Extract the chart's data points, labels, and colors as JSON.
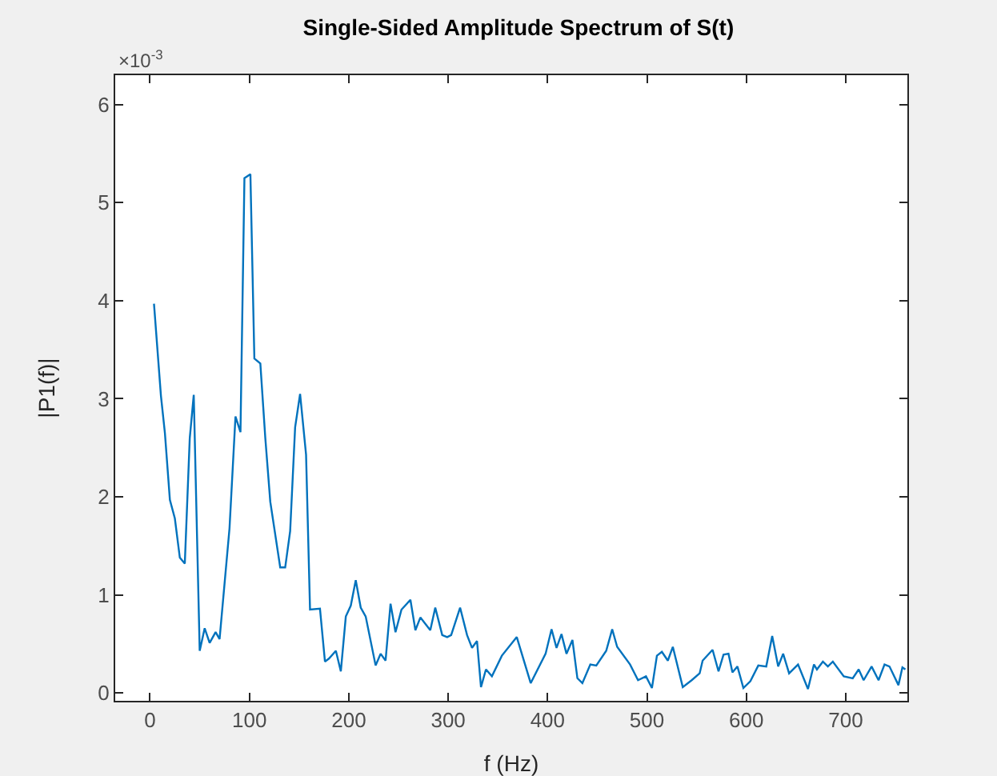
{
  "chart_data": {
    "type": "line",
    "title": "Single-Sided Amplitude Spectrum of S(t)",
    "xlabel": "f (Hz)",
    "ylabel": "|P1(f)|",
    "annotations": [
      "×10$^{-3}$"
    ],
    "x": [
      4,
      11,
      15,
      20,
      25,
      30,
      35,
      40,
      44,
      50,
      55,
      60,
      66,
      70,
      80,
      86,
      91,
      95,
      101,
      105,
      111,
      116,
      121,
      131,
      136,
      141,
      146,
      151,
      157,
      161,
      171,
      176,
      180,
      187,
      192,
      197,
      202,
      207,
      212,
      217,
      227,
      232,
      237,
      242,
      247,
      253,
      262,
      267,
      272,
      282,
      287,
      294,
      299,
      303,
      312,
      319,
      324,
      329,
      333,
      338,
      344,
      354,
      369,
      383,
      398,
      404,
      409,
      414,
      419,
      425,
      430,
      435,
      443,
      449,
      459,
      465,
      470,
      483,
      491,
      499,
      505,
      510,
      515,
      521,
      526,
      536,
      545,
      553,
      556,
      566,
      572,
      577,
      582,
      586,
      591,
      597,
      604,
      612,
      620,
      626,
      632,
      637,
      643,
      652,
      662,
      668,
      671,
      677,
      682,
      687,
      698,
      707,
      713,
      718,
      726,
      733,
      739,
      744,
      753,
      757,
      760
    ],
    "series": [
      {
        "color": "#0072bd",
        "values": [
          3.97,
          3.03,
          2.65,
          1.97,
          1.78,
          1.38,
          1.32,
          2.6,
          3.04,
          0.43,
          0.66,
          0.51,
          0.62,
          0.55,
          1.68,
          2.82,
          2.66,
          5.25,
          5.29,
          3.41,
          3.36,
          2.6,
          1.95,
          1.28,
          1.28,
          1.65,
          2.71,
          3.05,
          2.43,
          0.85,
          0.86,
          0.32,
          0.35,
          0.43,
          0.22,
          0.78,
          0.89,
          1.15,
          0.87,
          0.78,
          0.28,
          0.4,
          0.33,
          0.91,
          0.62,
          0.85,
          0.95,
          0.64,
          0.77,
          0.64,
          0.87,
          0.59,
          0.57,
          0.59,
          0.87,
          0.59,
          0.46,
          0.53,
          0.06,
          0.24,
          0.17,
          0.38,
          0.57,
          0.1,
          0.4,
          0.65,
          0.46,
          0.6,
          0.4,
          0.54,
          0.15,
          0.1,
          0.29,
          0.28,
          0.43,
          0.65,
          0.47,
          0.29,
          0.13,
          0.17,
          0.05,
          0.38,
          0.42,
          0.33,
          0.47,
          0.06,
          0.13,
          0.2,
          0.33,
          0.44,
          0.22,
          0.39,
          0.4,
          0.21,
          0.27,
          0.05,
          0.12,
          0.28,
          0.27,
          0.58,
          0.27,
          0.4,
          0.2,
          0.29,
          0.04,
          0.29,
          0.24,
          0.32,
          0.27,
          0.32,
          0.17,
          0.15,
          0.24,
          0.13,
          0.27,
          0.13,
          0.29,
          0.27,
          0.08,
          0.26,
          0.24
        ]
      }
    ],
    "xlim": [
      -35,
      762
    ],
    "xticks": [
      0,
      100,
      200,
      300,
      400,
      500,
      600,
      700
    ],
    "ylim": [
      -0.08,
      6.3
    ],
    "yticks": [
      0,
      1,
      2,
      3,
      4,
      5,
      6
    ],
    "grid": false,
    "legend": false,
    "marker": "none",
    "line_style": "solid"
  }
}
